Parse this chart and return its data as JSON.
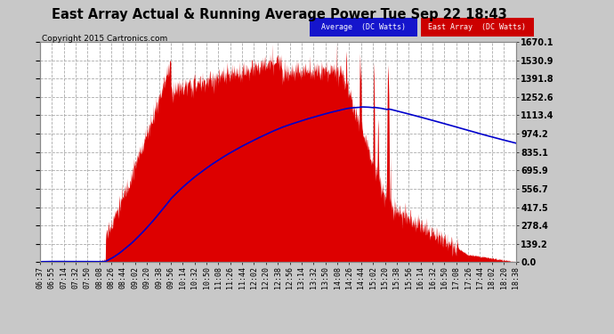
{
  "title": "East Array Actual & Running Average Power Tue Sep 22 18:43",
  "copyright": "Copyright 2015 Cartronics.com",
  "legend_avg": "Average  (DC Watts)",
  "legend_east": "East Array  (DC Watts)",
  "yticks": [
    0.0,
    139.2,
    278.4,
    417.5,
    556.7,
    695.9,
    835.1,
    974.2,
    1113.4,
    1252.6,
    1391.8,
    1530.9,
    1670.1
  ],
  "ymax": 1670.1,
  "bg_color": "#ffffff",
  "fill_color": "#dd0000",
  "line_color": "#0000cc",
  "grid_color": "#aaaaaa",
  "outer_bg": "#c8c8c8",
  "xtick_labels": [
    "06:37",
    "06:55",
    "07:14",
    "07:32",
    "07:50",
    "08:08",
    "08:26",
    "08:44",
    "09:02",
    "09:20",
    "09:38",
    "09:56",
    "10:14",
    "10:32",
    "10:50",
    "11:08",
    "11:26",
    "11:44",
    "12:02",
    "12:20",
    "12:38",
    "12:56",
    "13:14",
    "13:32",
    "13:50",
    "14:08",
    "14:26",
    "14:44",
    "15:02",
    "15:20",
    "15:38",
    "15:56",
    "16:14",
    "16:32",
    "16:50",
    "17:08",
    "17:26",
    "17:44",
    "18:02",
    "18:20",
    "18:38"
  ]
}
